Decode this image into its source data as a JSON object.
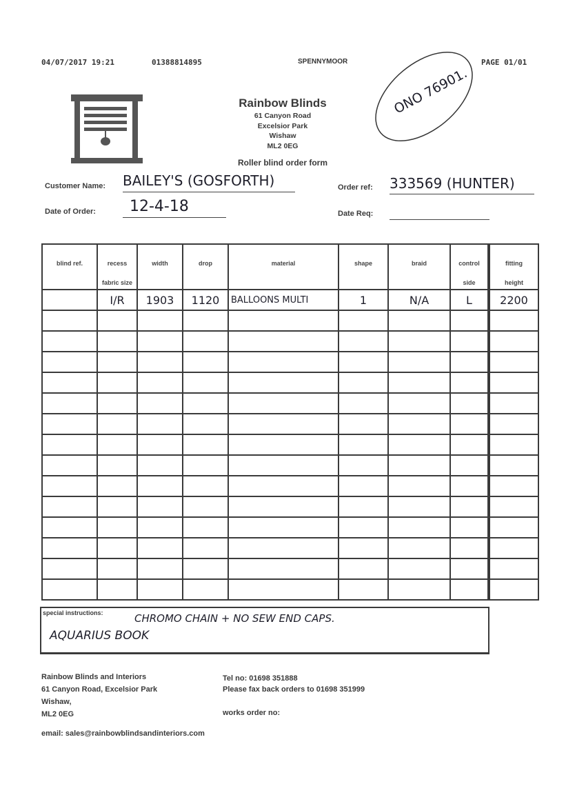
{
  "fax_header": {
    "datetime": "04/07/2017  19:21",
    "phone": "01388814895",
    "location": "SPENNYMOOR",
    "page": "PAGE  01/01"
  },
  "stamp": {
    "text": "ONO 76901."
  },
  "company": {
    "name": "Rainbow Blinds",
    "address": [
      "61 Canyon Road",
      "Excelsior Park",
      "Wishaw",
      "ML2 0EG"
    ],
    "form_title": "Roller blind order form"
  },
  "fields": {
    "customer_name_label": "Customer Name:",
    "customer_name": "BAILEY'S (GOSFORTH)",
    "date_of_order_label": "Date of Order:",
    "date_of_order": "12-4-18",
    "order_ref_label": "Order ref:",
    "order_ref": "333569 (HUNTER)",
    "date_req_label": "Date Req:",
    "date_req": ""
  },
  "table": {
    "headers": {
      "blind_ref": "blind ref.",
      "recess": "recess",
      "fabric_size": "fabric size",
      "width": "width",
      "drop": "drop",
      "material": "material",
      "shape": "shape",
      "braid": "braid",
      "control": "control",
      "side": "side",
      "fitting": "fitting",
      "height": "height"
    },
    "rows": [
      {
        "blind_ref": "",
        "recess": "I/R",
        "width": "1903",
        "drop": "1120",
        "material": "BALLOONS MULTI",
        "shape": "1",
        "braid": "N/A",
        "control": "L",
        "fitting_height": "2200"
      }
    ],
    "empty_rows": 14
  },
  "special": {
    "label": "special instructions:",
    "line1": "CHROMO CHAIN + NO SEW END CAPS.",
    "line2": "AQUARIUS BOOK"
  },
  "footer": {
    "company": "Rainbow Blinds and Interiors",
    "address1": "61 Canyon Road, Excelsior Park",
    "address2": "Wishaw,",
    "postcode": "ML2 0EG",
    "tel": "Tel no: 01698 351888",
    "fax": "Please fax back orders to 01698 351999",
    "works_order": "works order no:",
    "email": "email: sales@rainbowblindsandinteriors.com"
  }
}
